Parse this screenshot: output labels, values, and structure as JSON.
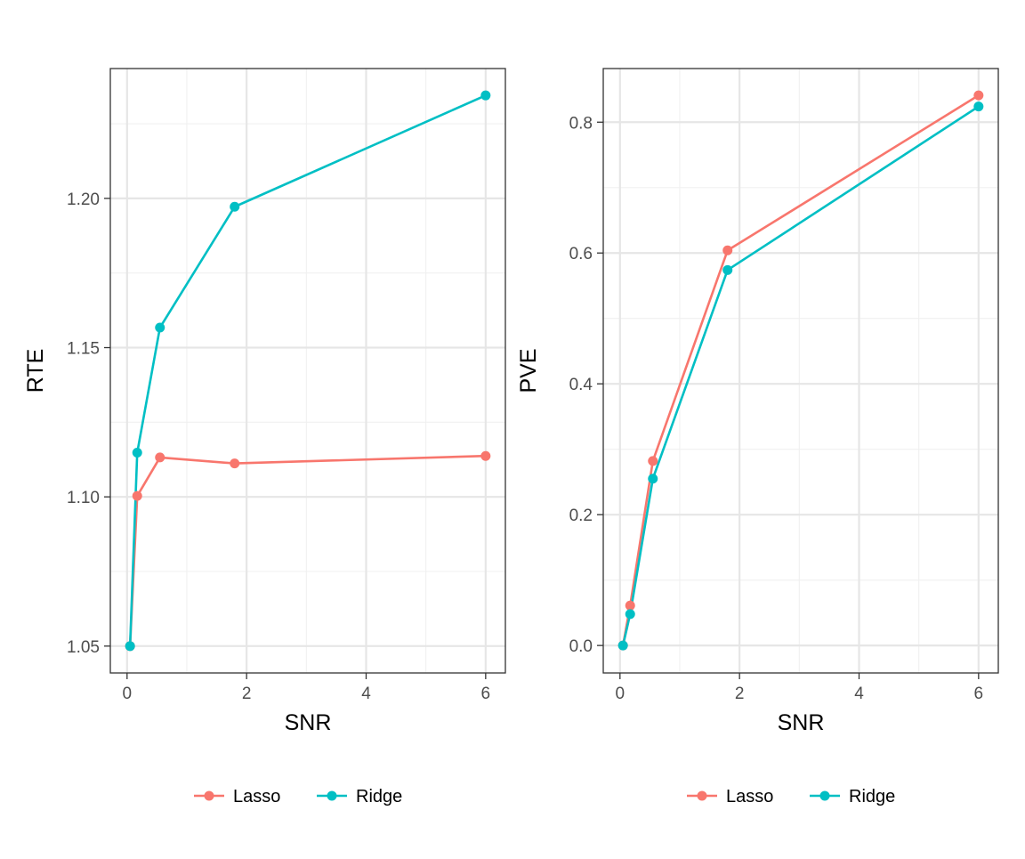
{
  "chart_data": [
    {
      "type": "line",
      "xlabel": "SNR",
      "ylabel": "RTE",
      "xlim": [
        -0.28,
        6.33
      ],
      "ylim": [
        1.041,
        1.2435
      ],
      "x_ticks": [
        0,
        2,
        4,
        6
      ],
      "x_tick_labels": [
        "0",
        "2",
        "4",
        "6"
      ],
      "y_ticks": [
        1.05,
        1.1,
        1.15,
        1.2
      ],
      "y_tick_labels": [
        "1.05",
        "1.10",
        "1.15",
        "1.20"
      ],
      "grid": true,
      "legend_position": "bottom",
      "series": [
        {
          "name": "Lasso",
          "color": "#F8766D",
          "x": [
            0.05,
            0.17,
            0.55,
            1.8,
            6.0
          ],
          "y": [
            1.05,
            1.1003,
            1.1132,
            1.1112,
            1.1137
          ]
        },
        {
          "name": "Ridge",
          "color": "#00BFC4",
          "x": [
            0.05,
            0.17,
            0.55,
            1.8,
            6.0
          ],
          "y": [
            1.05,
            1.1148,
            1.1567,
            1.1972,
            1.2345
          ]
        }
      ]
    },
    {
      "type": "line",
      "xlabel": "SNR",
      "ylabel": "PVE",
      "xlim": [
        -0.28,
        6.33
      ],
      "ylim": [
        -0.042,
        0.882
      ],
      "x_ticks": [
        0,
        2,
        4,
        6
      ],
      "x_tick_labels": [
        "0",
        "2",
        "4",
        "6"
      ],
      "y_ticks": [
        0.0,
        0.2,
        0.4,
        0.6,
        0.8
      ],
      "y_tick_labels": [
        "0.0",
        "0.2",
        "0.4",
        "0.6",
        "0.8"
      ],
      "grid": true,
      "legend_position": "bottom",
      "series": [
        {
          "name": "Lasso",
          "color": "#F8766D",
          "x": [
            0.05,
            0.17,
            0.55,
            1.8,
            6.0
          ],
          "y": [
            0.0,
            0.061,
            0.282,
            0.604,
            0.841
          ]
        },
        {
          "name": "Ridge",
          "color": "#00BFC4",
          "x": [
            0.05,
            0.17,
            0.55,
            1.8,
            6.0
          ],
          "y": [
            0.0,
            0.048,
            0.255,
            0.574,
            0.824
          ]
        }
      ]
    }
  ]
}
